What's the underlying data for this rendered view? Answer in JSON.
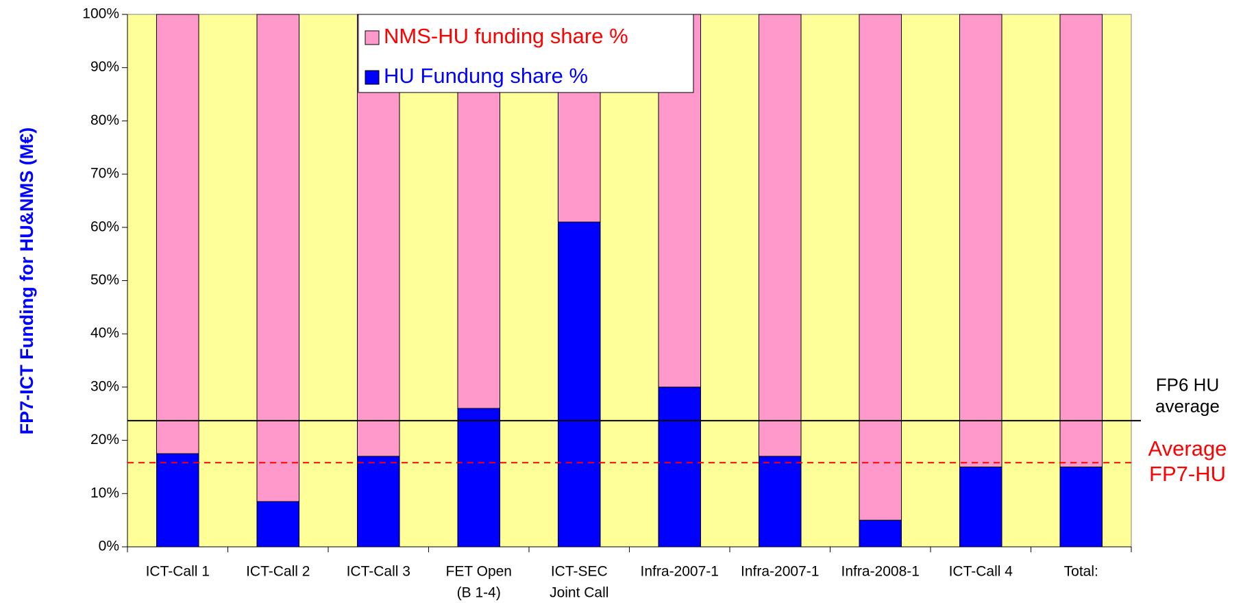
{
  "chart_data": {
    "type": "stacked_bar",
    "y_axis_label": "FP7-ICT Funding for HU&NMS (M€)",
    "categories": [
      [
        "ICT-Call 1"
      ],
      [
        "ICT-Call 2"
      ],
      [
        "ICT-Call 3"
      ],
      [
        "FET Open",
        "(B 1-4)"
      ],
      [
        "ICT-SEC",
        "Joint Call"
      ],
      [
        "Infra-2007-1"
      ],
      [
        "Infra-2007-1"
      ],
      [
        "Infra-2008-1"
      ],
      [
        "ICT-Call 4"
      ],
      [
        "Total:"
      ]
    ],
    "series": [
      {
        "name": "HU Fundung share %",
        "color": "#0000ff",
        "values": [
          17.5,
          8.5,
          17,
          26,
          61,
          30,
          17,
          5,
          15,
          15
        ]
      },
      {
        "name": "NMS-HU funding share %",
        "color": "#ff99cc",
        "values": [
          82.5,
          91.5,
          83,
          74,
          39,
          70,
          83,
          95,
          85,
          85
        ]
      }
    ],
    "ylim": [
      0,
      100
    ],
    "yticks": [
      {
        "value": 0,
        "label": "0%"
      },
      {
        "value": 10,
        "label": "10%"
      },
      {
        "value": 20,
        "label": "20%"
      },
      {
        "value": 30,
        "label": "30%"
      },
      {
        "value": 40,
        "label": "40%"
      },
      {
        "value": 50,
        "label": "50%"
      },
      {
        "value": 60,
        "label": "60%"
      },
      {
        "value": 70,
        "label": "70%"
      },
      {
        "value": 80,
        "label": "80%"
      },
      {
        "value": 90,
        "label": "90%"
      },
      {
        "value": 100,
        "label": "100%"
      }
    ],
    "reference_lines": [
      {
        "value": 23.7,
        "label": [
          "FP6 HU",
          "average"
        ],
        "color": "#000000",
        "style": "solid"
      },
      {
        "value": 15.8,
        "label": [
          "Average",
          "FP7-HU"
        ],
        "color": "#ff0000",
        "style": "dashed"
      }
    ],
    "plot_background": "#ffff99"
  }
}
